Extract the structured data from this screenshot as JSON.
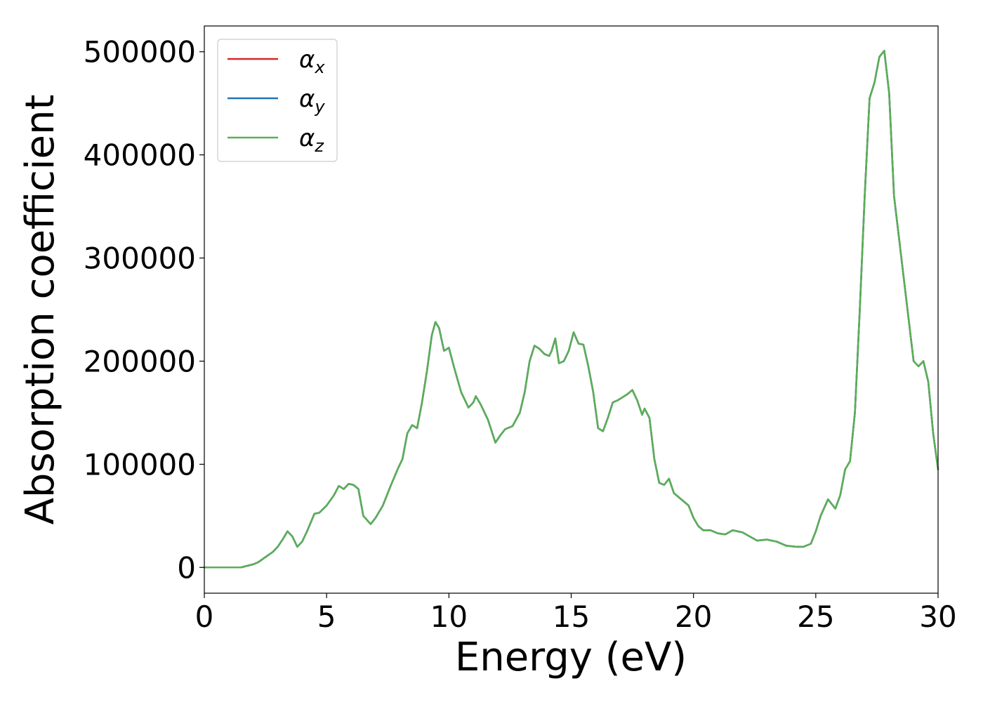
{
  "chart_data": {
    "type": "line",
    "title": "",
    "xlabel": "Energy (eV)",
    "ylabel": "Absorption coefficient",
    "xlim": [
      0,
      30
    ],
    "ylim": [
      -25000,
      525000
    ],
    "xticks": [
      0,
      5,
      10,
      15,
      20,
      25,
      30
    ],
    "xtick_labels": [
      "0",
      "5",
      "10",
      "15",
      "20",
      "25",
      "30"
    ],
    "yticks": [
      0,
      100000,
      200000,
      300000,
      400000,
      500000
    ],
    "ytick_labels": [
      "0",
      "100000",
      "200000",
      "300000",
      "400000",
      "500000"
    ],
    "grid": false,
    "legend_position": "top-left",
    "x": [
      0,
      0.5,
      1.0,
      1.5,
      2.0,
      2.2,
      2.5,
      2.8,
      3.0,
      3.2,
      3.4,
      3.6,
      3.8,
      4.0,
      4.2,
      4.5,
      4.7,
      5.0,
      5.3,
      5.5,
      5.7,
      5.9,
      6.1,
      6.3,
      6.5,
      6.8,
      7.0,
      7.3,
      7.6,
      7.9,
      8.1,
      8.3,
      8.5,
      8.7,
      8.9,
      9.1,
      9.3,
      9.45,
      9.6,
      9.8,
      10.0,
      10.2,
      10.5,
      10.8,
      11.0,
      11.1,
      11.3,
      11.6,
      11.9,
      12.1,
      12.3,
      12.6,
      12.9,
      13.1,
      13.3,
      13.5,
      13.7,
      13.9,
      14.1,
      14.2,
      14.35,
      14.5,
      14.7,
      14.9,
      15.1,
      15.3,
      15.5,
      15.7,
      15.9,
      16.1,
      16.3,
      16.5,
      16.7,
      16.9,
      17.1,
      17.3,
      17.5,
      17.7,
      17.9,
      18.0,
      18.2,
      18.4,
      18.6,
      18.8,
      19.0,
      19.2,
      19.4,
      19.6,
      19.8,
      20.0,
      20.2,
      20.4,
      20.7,
      21.0,
      21.3,
      21.6,
      21.8,
      22.0,
      22.3,
      22.6,
      23.0,
      23.4,
      23.8,
      24.2,
      24.5,
      24.8,
      25.0,
      25.2,
      25.5,
      25.8,
      26.0,
      26.2,
      26.4,
      26.6,
      26.8,
      27.0,
      27.2,
      27.4,
      27.6,
      27.8,
      28.0,
      28.2,
      28.4,
      28.6,
      28.8,
      29.0,
      29.2,
      29.4,
      29.6,
      29.8,
      30.0
    ],
    "series": [
      {
        "name": "α_x",
        "color": "#d62728",
        "values": [
          0,
          0,
          0,
          0,
          3000,
          5000,
          10000,
          15000,
          20000,
          27000,
          35000,
          30000,
          20000,
          25000,
          35000,
          52000,
          53000,
          60000,
          70000,
          79000,
          76000,
          81000,
          80000,
          76000,
          50000,
          42000,
          48000,
          60000,
          78000,
          95000,
          105000,
          130000,
          138000,
          135000,
          160000,
          190000,
          225000,
          238000,
          232000,
          210000,
          213000,
          195000,
          170000,
          155000,
          160000,
          166000,
          158000,
          143000,
          121000,
          128000,
          134000,
          137000,
          150000,
          170000,
          200000,
          215000,
          212000,
          207000,
          205000,
          210000,
          222000,
          198000,
          200000,
          210000,
          228000,
          217000,
          216000,
          195000,
          170000,
          135000,
          132000,
          145000,
          160000,
          162000,
          165000,
          168000,
          172000,
          162000,
          148000,
          154000,
          145000,
          105000,
          82000,
          80000,
          86000,
          72000,
          68000,
          64000,
          60000,
          48000,
          40000,
          36000,
          36000,
          33000,
          32000,
          36000,
          35000,
          34000,
          30000,
          26000,
          27000,
          25000,
          21000,
          20000,
          20000,
          23000,
          35000,
          50000,
          66000,
          57000,
          70000,
          95000,
          103000,
          150000,
          250000,
          360000,
          455000,
          470000,
          495000,
          501000,
          460000,
          360000,
          320000,
          280000,
          240000,
          200000,
          195000,
          200000,
          180000,
          130000,
          95000
        ]
      },
      {
        "name": "α_y",
        "color": "#1f77b4",
        "values": [
          0,
          0,
          0,
          0,
          3000,
          5000,
          10000,
          15000,
          20000,
          27000,
          35000,
          30000,
          20000,
          25000,
          35000,
          52000,
          53000,
          60000,
          70000,
          79000,
          76000,
          81000,
          80000,
          76000,
          50000,
          42000,
          48000,
          60000,
          78000,
          95000,
          105000,
          130000,
          138000,
          135000,
          160000,
          190000,
          225000,
          238000,
          232000,
          210000,
          213000,
          195000,
          170000,
          155000,
          160000,
          166000,
          158000,
          143000,
          121000,
          128000,
          134000,
          137000,
          150000,
          170000,
          200000,
          215000,
          212000,
          207000,
          205000,
          210000,
          222000,
          198000,
          200000,
          210000,
          228000,
          217000,
          216000,
          195000,
          170000,
          135000,
          132000,
          145000,
          160000,
          162000,
          165000,
          168000,
          172000,
          162000,
          148000,
          154000,
          145000,
          105000,
          82000,
          80000,
          86000,
          72000,
          68000,
          64000,
          60000,
          48000,
          40000,
          36000,
          36000,
          33000,
          32000,
          36000,
          35000,
          34000,
          30000,
          26000,
          27000,
          25000,
          21000,
          20000,
          20000,
          23000,
          35000,
          50000,
          66000,
          57000,
          70000,
          95000,
          103000,
          150000,
          250000,
          360000,
          455000,
          470000,
          495000,
          501000,
          460000,
          360000,
          320000,
          280000,
          240000,
          200000,
          195000,
          200000,
          180000,
          130000,
          95000
        ]
      },
      {
        "name": "α_z",
        "color": "#5aaf57",
        "values": [
          0,
          0,
          0,
          0,
          3000,
          5000,
          10000,
          15000,
          20000,
          27000,
          35000,
          30000,
          20000,
          25000,
          35000,
          52000,
          53000,
          60000,
          70000,
          79000,
          76000,
          81000,
          80000,
          76000,
          50000,
          42000,
          48000,
          60000,
          78000,
          95000,
          105000,
          130000,
          138000,
          135000,
          160000,
          190000,
          225000,
          238000,
          232000,
          210000,
          213000,
          195000,
          170000,
          155000,
          160000,
          166000,
          158000,
          143000,
          121000,
          128000,
          134000,
          137000,
          150000,
          170000,
          200000,
          215000,
          212000,
          207000,
          205000,
          210000,
          222000,
          198000,
          200000,
          210000,
          228000,
          217000,
          216000,
          195000,
          170000,
          135000,
          132000,
          145000,
          160000,
          162000,
          165000,
          168000,
          172000,
          162000,
          148000,
          154000,
          145000,
          105000,
          82000,
          80000,
          86000,
          72000,
          68000,
          64000,
          60000,
          48000,
          40000,
          36000,
          36000,
          33000,
          32000,
          36000,
          35000,
          34000,
          30000,
          26000,
          27000,
          25000,
          21000,
          20000,
          20000,
          23000,
          35000,
          50000,
          66000,
          57000,
          70000,
          95000,
          103000,
          150000,
          250000,
          360000,
          455000,
          470000,
          495000,
          501000,
          460000,
          360000,
          320000,
          280000,
          240000,
          200000,
          195000,
          200000,
          180000,
          130000,
          95000
        ]
      }
    ],
    "legend": {
      "entries": [
        {
          "symbol": "α",
          "sub": "x",
          "color": "#d62728"
        },
        {
          "symbol": "α",
          "sub": "y",
          "color": "#1f77b4"
        },
        {
          "symbol": "α",
          "sub": "z",
          "color": "#5aaf57"
        }
      ]
    }
  }
}
